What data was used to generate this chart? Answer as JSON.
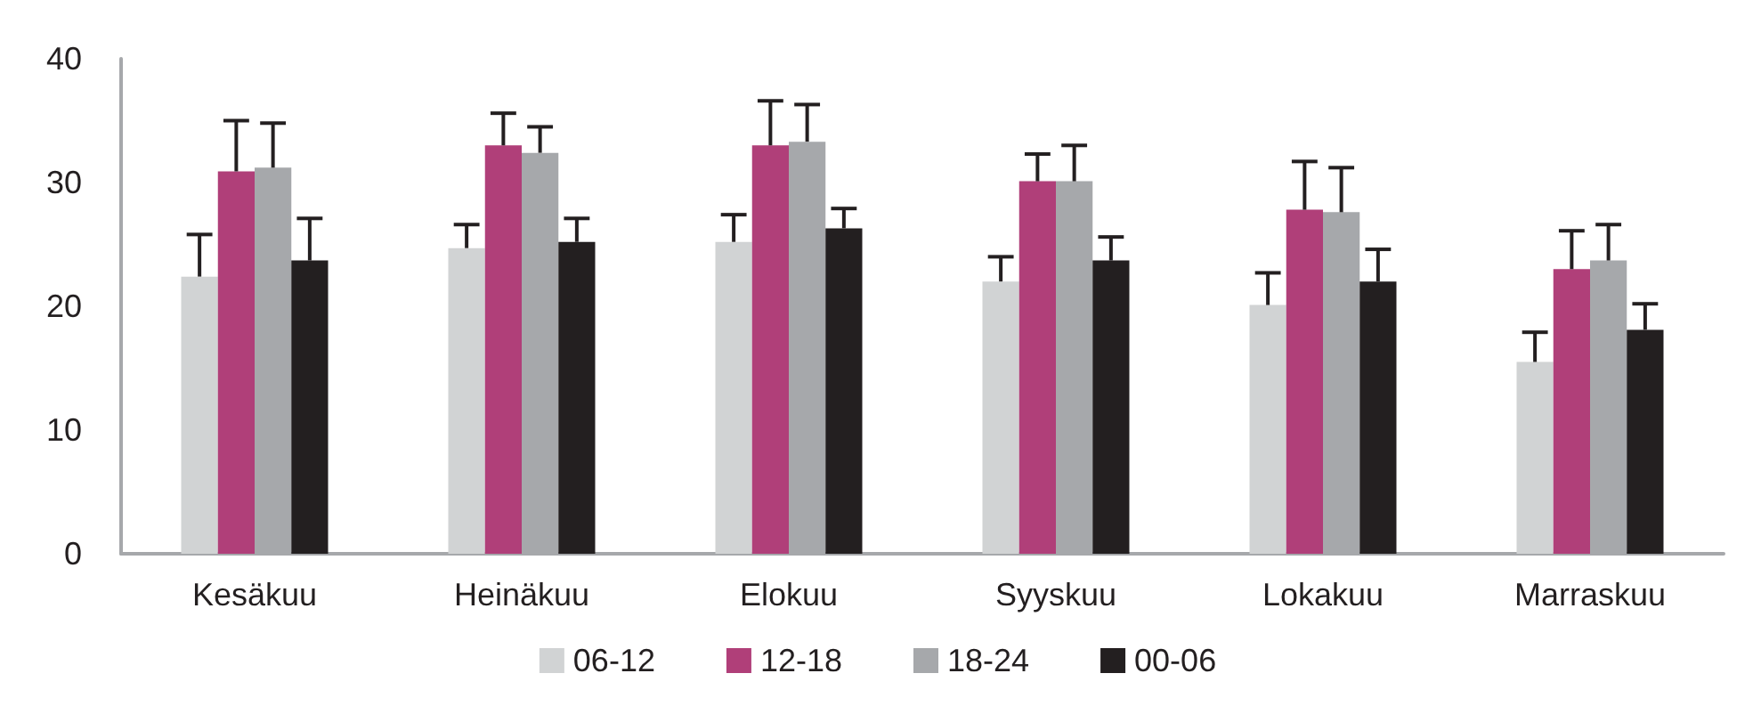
{
  "chart_data": {
    "type": "bar",
    "categories": [
      "Kesäkuu",
      "Heinäkuu",
      "Elokuu",
      "Syyskuu",
      "Lokakuu",
      "Marraskuu"
    ],
    "series": [
      {
        "name": "06-12",
        "color": "#d1d3d4",
        "values": [
          22.4,
          24.7,
          25.2,
          22.0,
          20.1,
          15.5
        ],
        "errors": [
          [
            22.4,
            25.8
          ],
          [
            24.7,
            26.6
          ],
          [
            25.2,
            27.4
          ],
          [
            22.0,
            24.0
          ],
          [
            20.1,
            22.7
          ],
          [
            15.5,
            17.9
          ]
        ]
      },
      {
        "name": "12-18",
        "color": "#b03f79",
        "values": [
          30.9,
          33.0,
          33.0,
          30.1,
          27.8,
          23.0
        ],
        "errors": [
          [
            30.9,
            35.0
          ],
          [
            33.0,
            35.6
          ],
          [
            33.0,
            36.6
          ],
          [
            30.1,
            32.3
          ],
          [
            27.8,
            31.7
          ],
          [
            23.0,
            26.1
          ]
        ]
      },
      {
        "name": "18-24",
        "color": "#a6a8ab",
        "values": [
          31.2,
          32.4,
          33.3,
          30.1,
          27.6,
          23.7
        ],
        "errors": [
          [
            31.2,
            34.8
          ],
          [
            32.4,
            34.5
          ],
          [
            33.3,
            36.3
          ],
          [
            30.1,
            33.0
          ],
          [
            27.6,
            31.2
          ],
          [
            23.7,
            26.6
          ]
        ]
      },
      {
        "name": "00-06",
        "color": "#231f20",
        "values": [
          23.7,
          25.2,
          26.3,
          23.7,
          22.0,
          18.1
        ],
        "errors": [
          [
            23.7,
            27.1
          ],
          [
            25.2,
            27.1
          ],
          [
            26.3,
            27.9
          ],
          [
            23.7,
            25.6
          ],
          [
            22.0,
            24.6
          ],
          [
            18.1,
            20.2
          ]
        ]
      }
    ],
    "ylim": [
      0,
      40
    ],
    "yticks": [
      0,
      10,
      20,
      30,
      40
    ],
    "grid": false,
    "legend": "bottom"
  }
}
